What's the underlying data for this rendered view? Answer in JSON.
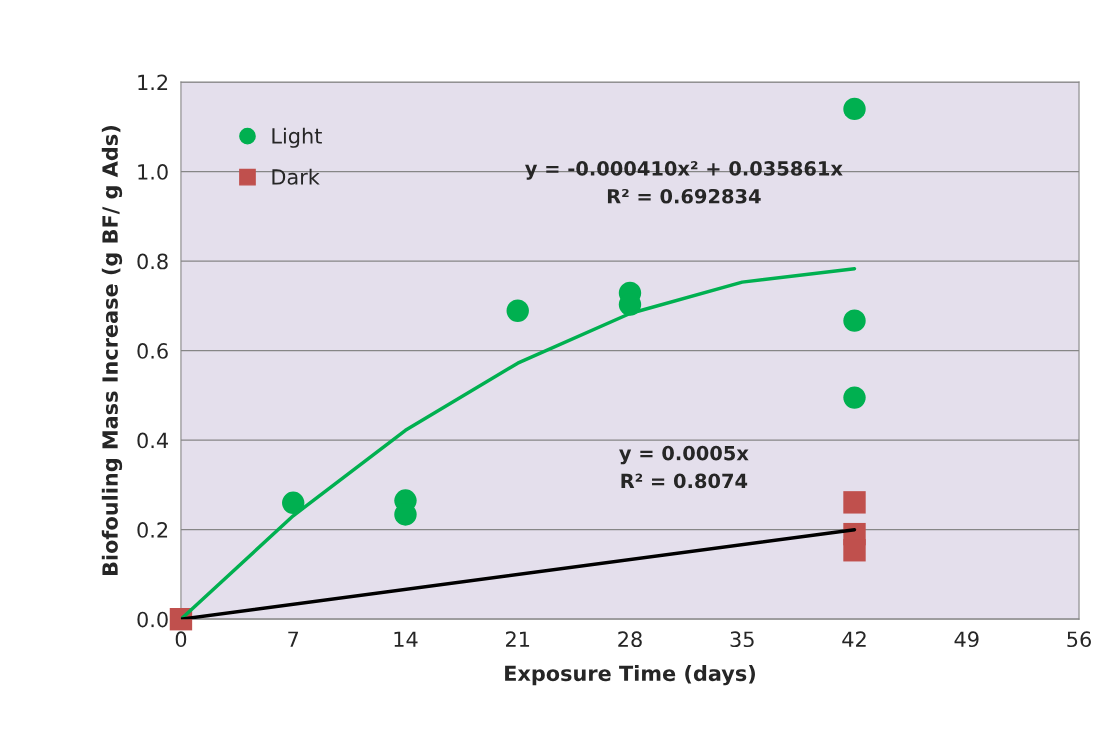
{
  "chart_data": {
    "type": "scatter",
    "xlabel": "Exposure Time (days)",
    "ylabel": "Biofouling Mass Increase (g BF/ g Ads)",
    "series": [
      {
        "name": "Light",
        "color": "#00b050",
        "marker": "circle",
        "x": [
          7,
          14,
          14,
          21,
          28,
          28,
          42,
          42,
          42
        ],
        "values": [
          0.26,
          0.265,
          0.234,
          0.689,
          0.729,
          0.703,
          1.14,
          0.667,
          0.495
        ]
      },
      {
        "name": "Dark",
        "color": "#c0504d",
        "marker": "square",
        "x": [
          0,
          42,
          42,
          42
        ],
        "values": [
          0,
          0.261,
          0.19,
          0.154
        ]
      },
      {
        "type": "line",
        "color": "#00b050",
        "marker": "none",
        "x": [
          0,
          7,
          14,
          21,
          28,
          35,
          42
        ],
        "values": [
          0,
          0.231,
          0.422,
          0.572,
          0.683,
          0.753,
          0.783
        ]
      },
      {
        "type": "line",
        "color": "#000000",
        "marker": "none",
        "x": [
          0,
          42
        ],
        "values": [
          0,
          0.2
        ]
      }
    ],
    "annotations": [
      "y = -0.000410x² + 0.035861x\nR² = 0.692834",
      "y = 0.0005x\nR² = 0.8074"
    ],
    "xlim": [
      0,
      56
    ],
    "xticks": [
      0,
      7,
      14,
      21,
      28,
      35,
      42,
      49,
      56
    ],
    "ylim": [
      0,
      1.2
    ],
    "yticks": [
      {
        "value": 0,
        "label": "0.0"
      },
      {
        "value": 0.2,
        "label": "0.2"
      },
      {
        "value": 0.4,
        "label": "0.4"
      },
      {
        "value": 0.6,
        "label": "0.6"
      },
      {
        "value": 0.8,
        "label": "0.8"
      },
      {
        "value": 1.0,
        "label": "1.0"
      },
      {
        "value": 1.2,
        "label": "1.2"
      }
    ],
    "grid": "y",
    "legend": "top left",
    "line_style": "solid"
  }
}
